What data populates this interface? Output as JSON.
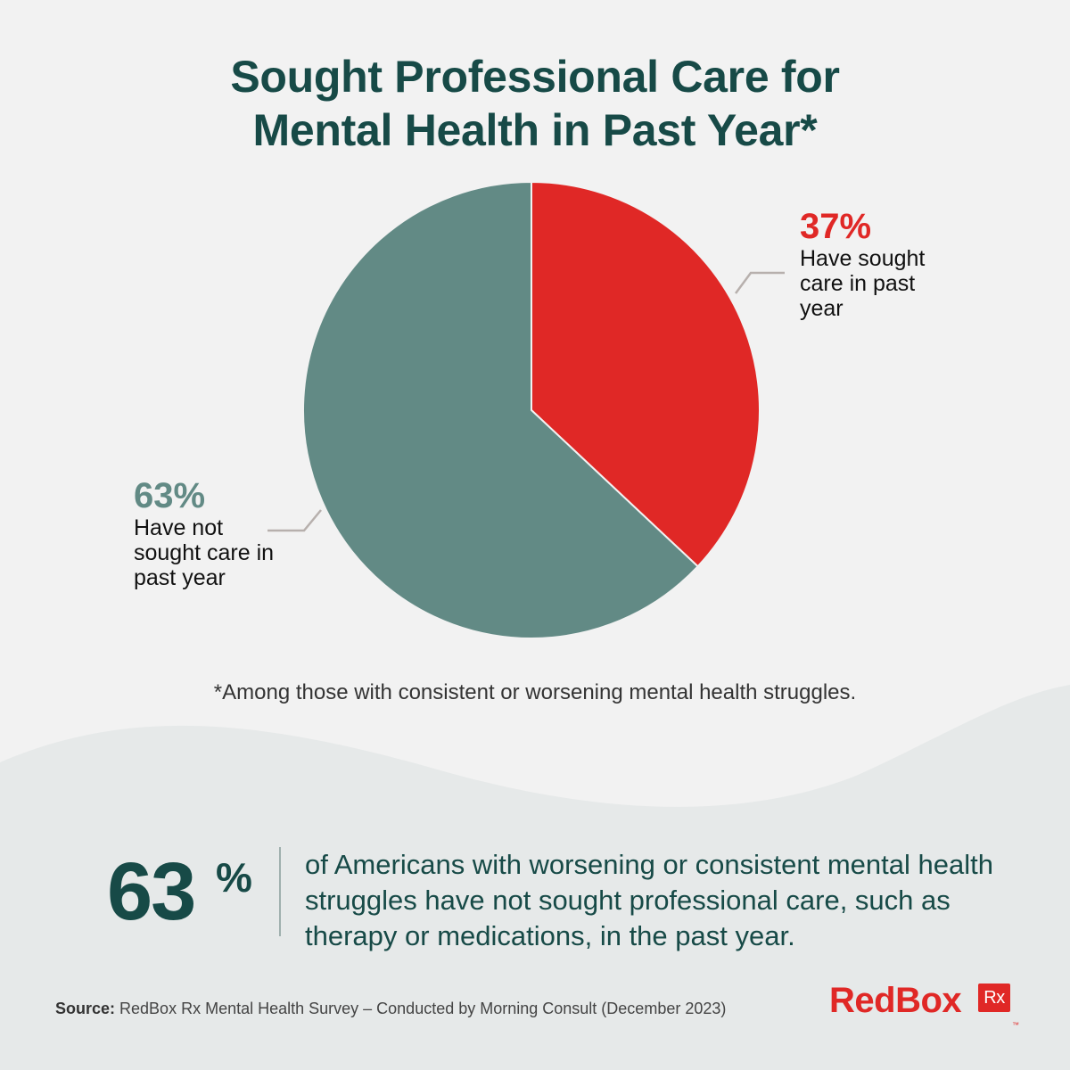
{
  "title": {
    "line1": "Sought Professional Care for",
    "line2": "Mental Health in Past Year*"
  },
  "chart_data": {
    "type": "pie",
    "title": "Sought Professional Care for Mental Health in Past Year*",
    "slices": [
      {
        "percent_label": "37%",
        "value": 37,
        "label": "Have sought care in past year",
        "color": "#e02826"
      },
      {
        "percent_label": "63%",
        "value": 63,
        "label": "Have not sought care in past year",
        "color": "#628a85"
      }
    ],
    "start": "12 o'clock, clockwise"
  },
  "labels": {
    "sought_desc": "Have sought care in past year",
    "not_sought_desc": "Have not sought care in past year"
  },
  "footnote": "*Among those with consistent or worsening mental health struggles.",
  "stat": {
    "number": "63",
    "sign": "%",
    "text": "of Americans with worsening or consistent mental health struggles have not sought professional care, such as therapy or medications, in the past year."
  },
  "source": {
    "label": "Source:",
    "text": " RedBox Rx Mental Health Survey – Conducted by Morning Consult (December 2023)"
  },
  "logo": {
    "brand": "RedBox",
    "rx": "Rx",
    "tm": "™"
  },
  "colors": {
    "title": "#174a47",
    "accent_red": "#e02826",
    "teal": "#628a85",
    "background": "#f2f2f2",
    "wave": "#e6e9e9"
  }
}
